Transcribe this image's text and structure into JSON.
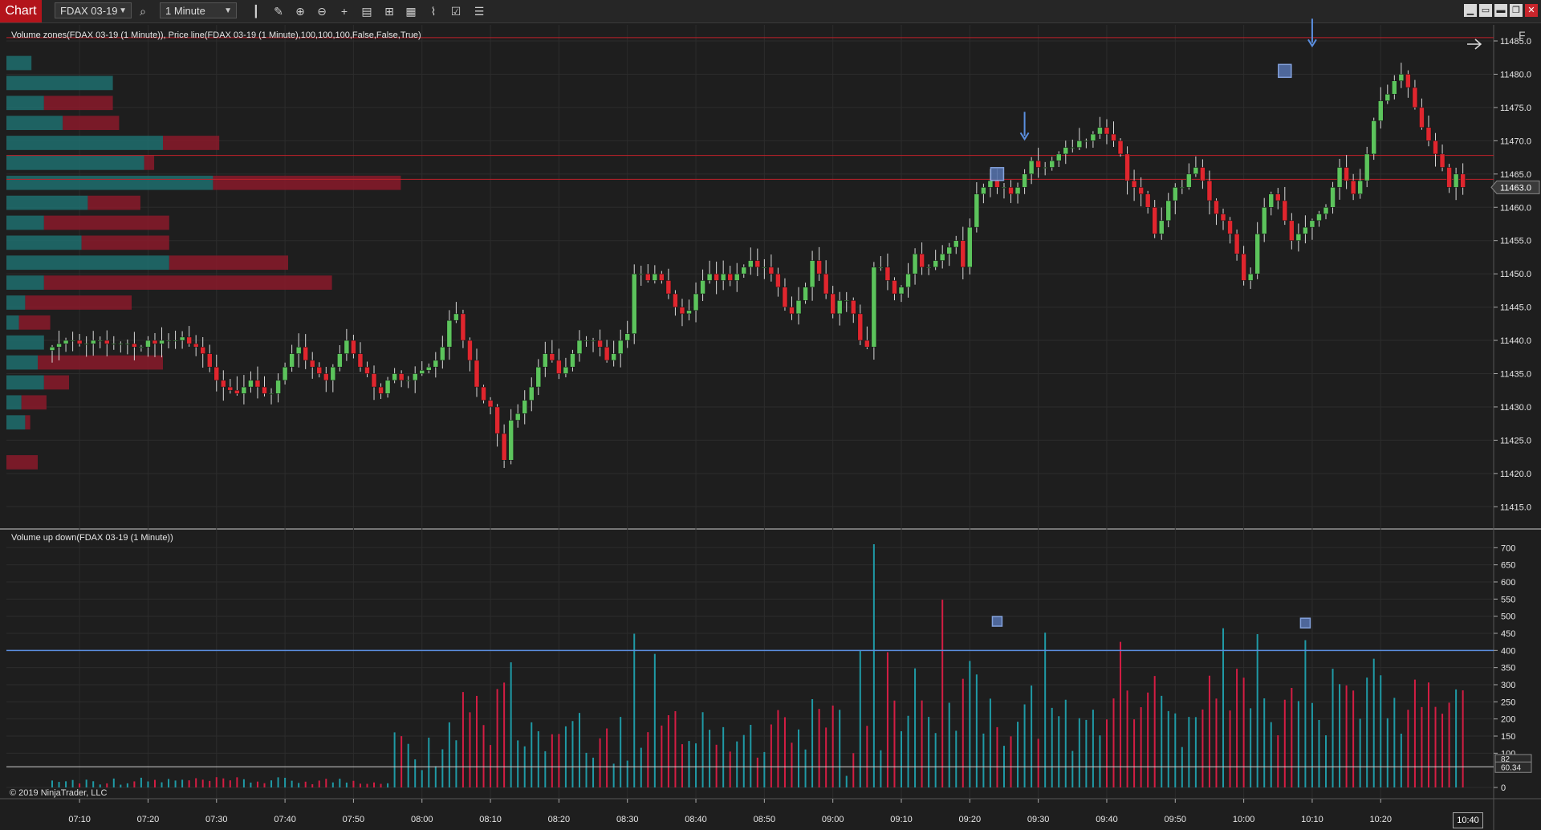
{
  "toolbar": {
    "tab_label": "Chart",
    "instrument": "FDAX 03-19",
    "interval": "1 Minute",
    "icons": [
      "bar-type-icon",
      "drawing-tool-icon",
      "zoom-in-icon",
      "zoom-out-icon",
      "crosshair-icon",
      "data-box-icon",
      "properties-icon",
      "indicators-icon",
      "strategies-icon",
      "templates-icon",
      "list-icon"
    ]
  },
  "window_buttons": [
    "minimize-icon",
    "restore-icon",
    "maximize-icon",
    "close-icon"
  ],
  "price_panel": {
    "label": "Volume zones(FDAX 03-19 (1 Minute)), Price line(FDAX 03-19 (1 Minute),100,100,100,False,False,True)",
    "y_ticks": [
      "11485.0",
      "11480.0",
      "11475.0",
      "11470.0",
      "11465.0",
      "11460.0",
      "11455.0",
      "11450.0",
      "11445.0",
      "11440.0",
      "11435.0",
      "11430.0",
      "11425.0",
      "11420.0",
      "11415.0"
    ],
    "last_price": "11463.0",
    "lines": [
      11485.5,
      11467.8,
      11464.2
    ],
    "colors": {
      "up": "#5cc45c",
      "down": "#e0262e",
      "line": "#c0202a",
      "last_badge": "#3a3a3a"
    }
  },
  "volume_panel": {
    "label": "Volume up down(FDAX 03-19 (1 Minute))",
    "y_ticks": [
      "700",
      "650",
      "600",
      "550",
      "500",
      "450",
      "400",
      "350",
      "300",
      "250",
      "200",
      "150",
      "100",
      "0"
    ],
    "current_values": [
      "82",
      "60.34"
    ],
    "line_level": 400,
    "colors": {
      "up": "#1f9aa6",
      "down": "#d41d43",
      "line": "#5b8fe0"
    }
  },
  "x_axis": {
    "labels": [
      "07:10",
      "07:20",
      "07:30",
      "07:40",
      "07:50",
      "08:00",
      "08:10",
      "08:20",
      "08:30",
      "08:40",
      "08:50",
      "09:00",
      "09:10",
      "09:20",
      "09:30",
      "09:40",
      "09:50",
      "10:00",
      "10:10",
      "10:20"
    ],
    "clock": "10:40"
  },
  "side_button": "F",
  "copyright": "© 2019 NinjaTrader, LLC",
  "chart_data": {
    "type": "candlestick",
    "x_axis_start": "07:06",
    "bar_interval_minutes": 1,
    "ylim": [
      11414,
      11487
    ],
    "volume_ylim": [
      0,
      730
    ],
    "volume_zones": [
      {
        "price": 11481.5,
        "buy": 20,
        "sell": 0
      },
      {
        "price": 11478.5,
        "buy": 85,
        "sell": 0
      },
      {
        "price": 11475.5,
        "buy": 30,
        "sell": 55
      },
      {
        "price": 11472.5,
        "buy": 45,
        "sell": 45
      },
      {
        "price": 11469.5,
        "buy": 125,
        "sell": 45
      },
      {
        "price": 11466.5,
        "buy": 110,
        "sell": 8
      },
      {
        "price": 11463.5,
        "buy": 165,
        "sell": 150
      },
      {
        "price": 11460.5,
        "buy": 65,
        "sell": 42
      },
      {
        "price": 11457.5,
        "buy": 30,
        "sell": 100
      },
      {
        "price": 11454.5,
        "buy": 60,
        "sell": 70
      },
      {
        "price": 11451.5,
        "buy": 130,
        "sell": 95
      },
      {
        "price": 11448.5,
        "buy": 30,
        "sell": 230
      },
      {
        "price": 11445.5,
        "buy": 15,
        "sell": 85
      },
      {
        "price": 11442.5,
        "buy": 10,
        "sell": 25
      },
      {
        "price": 11439.5,
        "buy": 30,
        "sell": 0
      },
      {
        "price": 11436.5,
        "buy": 25,
        "sell": 100
      },
      {
        "price": 11433.5,
        "buy": 30,
        "sell": 20
      },
      {
        "price": 11430.5,
        "buy": 12,
        "sell": 20
      },
      {
        "price": 11427.5,
        "buy": 15,
        "sell": 4
      },
      {
        "price": 11421.5,
        "buy": 0,
        "sell": 25
      }
    ],
    "closes": [
      11439,
      11439.5,
      11440,
      11440,
      11439.5,
      11439.5,
      11440,
      11440,
      11439.5,
      11439.5,
      11439.5,
      11439.5,
      11439,
      11439,
      11440,
      11439.5,
      11440,
      11440,
      11440,
      11440.5,
      11439.5,
      11439,
      11438,
      11436,
      11434,
      11433,
      11432.5,
      11432,
      11433,
      11434,
      11433,
      11432,
      11432,
      11434,
      11436,
      11438,
      11439,
      11437,
      11436,
      11435,
      11434,
      11436,
      11438,
      11440,
      11438,
      11436,
      11435,
      11433,
      11432,
      11434,
      11435,
      11434,
      11434,
      11435,
      11435.5,
      11436,
      11437,
      11439,
      11443,
      11444,
      11440,
      11437,
      11433,
      11431,
      11430,
      11426,
      11422,
      11428,
      11429,
      11431,
      11433,
      11436,
      11438,
      11437,
      11435,
      11436,
      11438,
      11440,
      11440,
      11440,
      11439,
      11437,
      11438,
      11440,
      11441,
      11450,
      11450,
      11449,
      11450,
      11449,
      11447,
      11445,
      11444,
      11444.5,
      11447,
      11449,
      11450,
      11449,
      11450,
      11449,
      11450,
      11451,
      11452,
      11451,
      11451,
      11450,
      11448,
      11445,
      11444,
      11446,
      11448,
      11452,
      11450,
      11447,
      11444,
      11446,
      11446,
      11444,
      11440,
      11439,
      11451,
      11451,
      11449,
      11447,
      11448,
      11450,
      11453,
      11451,
      11451,
      11452,
      11453,
      11454,
      11455,
      11451,
      11457,
      11462,
      11463,
      11464,
      11463,
      11463,
      11462,
      11463,
      11465,
      11467,
      11466,
      11466,
      11467,
      11468,
      11469,
      11469,
      11470,
      11470,
      11471,
      11472,
      11471,
      11470,
      11468,
      11464,
      11463,
      11462,
      11460,
      11456,
      11458,
      11461,
      11463,
      11463,
      11465,
      11466,
      11464,
      11461,
      11459,
      11458,
      11456,
      11453,
      11449,
      11450,
      11456,
      11460,
      11462,
      11461,
      11458,
      11455,
      11456,
      11457,
      11458,
      11459,
      11460,
      11463,
      11466,
      11464,
      11462,
      11464,
      11468,
      11473,
      11476,
      11477,
      11479,
      11480,
      11478,
      11475,
      11472,
      11470,
      11468,
      11466,
      11463,
      11465,
      11463
    ]
  }
}
